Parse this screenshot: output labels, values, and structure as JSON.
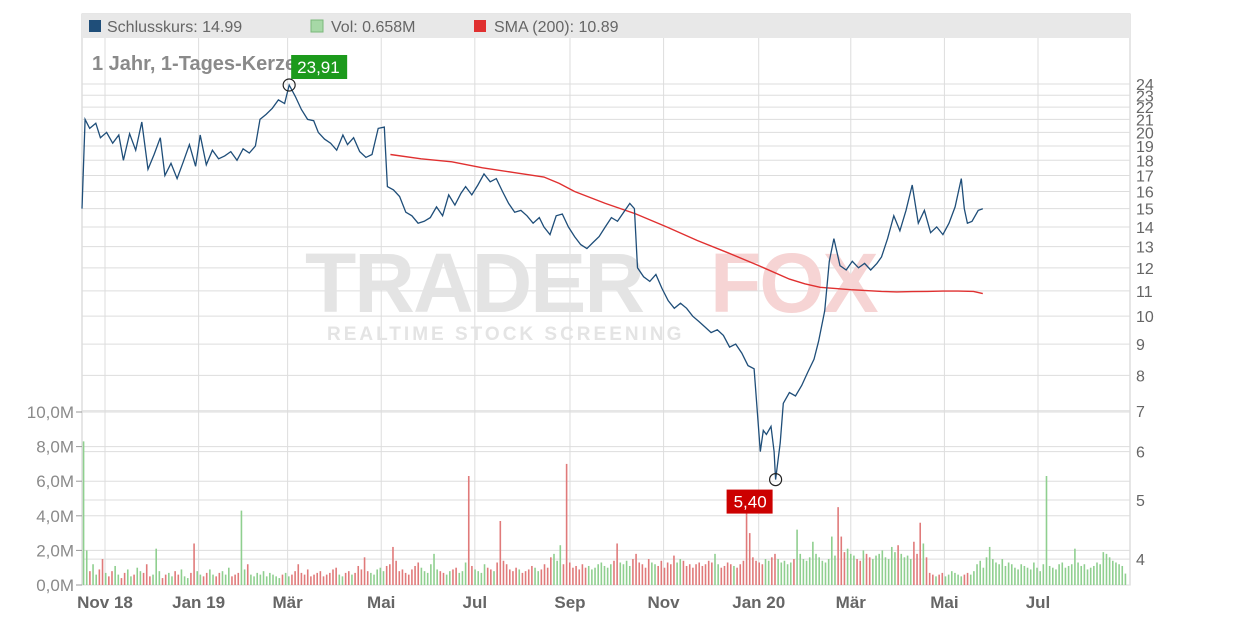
{
  "legend": {
    "close_label": "Schlusskurs: 14.99",
    "vol_label": "Vol: 0.658M",
    "sma_label": "SMA (200): 10.89"
  },
  "title": "1 Jahr, 1-Tages-Kerzen",
  "watermark": {
    "brand_a": "TRADER",
    "brand_b": "FOX",
    "tagline": "REALTIME STOCK SCREENING"
  },
  "annotations": {
    "high_label": "23,91",
    "low_label": "5,40"
  },
  "colors": {
    "close": "#1f4e79",
    "vol_up": "#8fcf8f",
    "vol_down": "#e07a7a",
    "sma": "#e03030",
    "high": "#1c9a1c",
    "low": "#cc0000"
  },
  "chart_data": {
    "type": "line",
    "price_scale": "log",
    "price_ylim": [
      3.5,
      25
    ],
    "price_ticks": [
      4,
      5,
      6,
      7,
      8,
      9,
      10,
      11,
      12,
      13,
      14,
      15,
      16,
      17,
      18,
      19,
      20,
      21,
      22,
      23,
      24
    ],
    "volume_ylim": [
      0,
      10000000
    ],
    "volume_ticks": [
      "0,0M",
      "2,0M",
      "4,0M",
      "6,0M",
      "8,0M",
      "10,0M"
    ],
    "x_ticks": [
      {
        "label": "Nov 18",
        "day": 15
      },
      {
        "label": "Jan 19",
        "day": 76
      },
      {
        "label": "Mär",
        "day": 134
      },
      {
        "label": "Mai",
        "day": 195
      },
      {
        "label": "Jul",
        "day": 256
      },
      {
        "label": "Sep",
        "day": 318
      },
      {
        "label": "Nov",
        "day": 379
      },
      {
        "label": "Jan 20",
        "day": 441
      },
      {
        "label": "Mär",
        "day": 501
      },
      {
        "label": "Mai",
        "day": 562
      },
      {
        "label": "Jul",
        "day": 623
      }
    ],
    "x_range_days": [
      0,
      681
    ],
    "series": [
      {
        "name": "Schlusskurs",
        "points": [
          [
            0,
            15.0
          ],
          [
            2,
            21.0
          ],
          [
            5,
            20.3
          ],
          [
            9,
            20.7
          ],
          [
            12,
            19.6
          ],
          [
            16,
            20.0
          ],
          [
            20,
            19.2
          ],
          [
            24,
            19.8
          ],
          [
            27,
            18.0
          ],
          [
            31,
            19.9
          ],
          [
            35,
            18.7
          ],
          [
            39,
            20.8
          ],
          [
            43,
            17.4
          ],
          [
            47,
            18.4
          ],
          [
            51,
            19.6
          ],
          [
            54,
            17.0
          ],
          [
            58,
            17.8
          ],
          [
            62,
            16.8
          ],
          [
            66,
            17.9
          ],
          [
            70,
            19.1
          ],
          [
            74,
            17.6
          ],
          [
            77,
            19.8
          ],
          [
            81,
            17.7
          ],
          [
            85,
            18.7
          ],
          [
            89,
            18.1
          ],
          [
            93,
            18.3
          ],
          [
            97,
            18.6
          ],
          [
            101,
            18.0
          ],
          [
            105,
            18.8
          ],
          [
            109,
            18.5
          ],
          [
            113,
            19.0
          ],
          [
            116,
            21.0
          ],
          [
            120,
            21.4
          ],
          [
            124,
            21.9
          ],
          [
            128,
            22.6
          ],
          [
            132,
            22.3
          ],
          [
            135,
            23.91
          ],
          [
            139,
            22.9
          ],
          [
            143,
            21.8
          ],
          [
            147,
            21.0
          ],
          [
            151,
            20.9
          ],
          [
            154,
            20.0
          ],
          [
            158,
            19.5
          ],
          [
            162,
            19.2
          ],
          [
            166,
            18.7
          ],
          [
            170,
            19.8
          ],
          [
            173,
            19.1
          ],
          [
            177,
            19.6
          ],
          [
            181,
            18.6
          ],
          [
            185,
            18.2
          ],
          [
            189,
            18.4
          ],
          [
            193,
            20.3
          ],
          [
            197,
            20.4
          ],
          [
            199,
            16.3
          ],
          [
            203,
            16.1
          ],
          [
            207,
            15.7
          ],
          [
            211,
            14.8
          ],
          [
            215,
            14.6
          ],
          [
            219,
            14.2
          ],
          [
            223,
            14.3
          ],
          [
            227,
            14.5
          ],
          [
            231,
            15.1
          ],
          [
            235,
            14.6
          ],
          [
            239,
            15.8
          ],
          [
            243,
            15.2
          ],
          [
            247,
            15.9
          ],
          [
            250,
            16.3
          ],
          [
            254,
            15.8
          ],
          [
            258,
            16.4
          ],
          [
            262,
            17.1
          ],
          [
            266,
            16.6
          ],
          [
            270,
            16.8
          ],
          [
            274,
            16.0
          ],
          [
            278,
            15.3
          ],
          [
            282,
            14.8
          ],
          [
            286,
            14.9
          ],
          [
            290,
            14.6
          ],
          [
            294,
            14.2
          ],
          [
            298,
            14.5
          ],
          [
            301,
            14.0
          ],
          [
            305,
            13.6
          ],
          [
            309,
            14.6
          ],
          [
            313,
            14.7
          ],
          [
            317,
            14.0
          ],
          [
            321,
            13.5
          ],
          [
            325,
            13.1
          ],
          [
            329,
            12.9
          ],
          [
            333,
            13.2
          ],
          [
            337,
            13.5
          ],
          [
            341,
            14.0
          ],
          [
            345,
            14.5
          ],
          [
            349,
            14.3
          ],
          [
            353,
            14.8
          ],
          [
            357,
            15.3
          ],
          [
            360,
            15.0
          ],
          [
            362,
            12.0
          ],
          [
            366,
            11.6
          ],
          [
            370,
            11.4
          ],
          [
            374,
            11.7
          ],
          [
            378,
            11.1
          ],
          [
            382,
            10.6
          ],
          [
            386,
            10.3
          ],
          [
            390,
            10.5
          ],
          [
            394,
            10.3
          ],
          [
            398,
            10.0
          ],
          [
            402,
            9.8
          ],
          [
            406,
            9.6
          ],
          [
            410,
            9.4
          ],
          [
            414,
            9.5
          ],
          [
            418,
            9.3
          ],
          [
            422,
            8.9
          ],
          [
            426,
            9.0
          ],
          [
            430,
            8.7
          ],
          [
            434,
            8.3
          ],
          [
            438,
            8.2
          ],
          [
            442,
            6.0
          ],
          [
            444,
            6.5
          ],
          [
            446,
            6.4
          ],
          [
            449,
            6.6
          ],
          [
            451,
            6.0
          ],
          [
            452,
            5.4
          ],
          [
            455,
            6.2
          ],
          [
            457,
            7.2
          ],
          [
            461,
            7.5
          ],
          [
            465,
            7.4
          ],
          [
            469,
            7.7
          ],
          [
            473,
            8.1
          ],
          [
            477,
            8.5
          ],
          [
            480,
            9.1
          ],
          [
            484,
            10.2
          ],
          [
            487,
            12.3
          ],
          [
            490,
            13.4
          ],
          [
            494,
            12.1
          ],
          [
            498,
            11.9
          ],
          [
            502,
            12.3
          ],
          [
            506,
            12.0
          ],
          [
            510,
            12.2
          ],
          [
            514,
            11.9
          ],
          [
            518,
            12.2
          ],
          [
            521,
            12.5
          ],
          [
            525,
            13.4
          ],
          [
            529,
            14.6
          ],
          [
            533,
            13.8
          ],
          [
            537,
            14.9
          ],
          [
            541,
            16.4
          ],
          [
            545,
            14.2
          ],
          [
            549,
            14.9
          ],
          [
            553,
            13.7
          ],
          [
            557,
            14.0
          ],
          [
            561,
            13.6
          ],
          [
            565,
            14.2
          ],
          [
            569,
            15.1
          ],
          [
            573,
            16.8
          ],
          [
            575,
            15.0
          ],
          [
            577,
            14.2
          ],
          [
            580,
            14.3
          ],
          [
            584,
            14.9
          ],
          [
            587,
            14.99
          ]
        ]
      },
      {
        "name": "SMA (200)",
        "points": [
          [
            201,
            18.4
          ],
          [
            221,
            18.1
          ],
          [
            241,
            17.9
          ],
          [
            261,
            17.5
          ],
          [
            281,
            17.2
          ],
          [
            301,
            16.9
          ],
          [
            311,
            16.5
          ],
          [
            321,
            16.0
          ],
          [
            341,
            15.3
          ],
          [
            361,
            14.7
          ],
          [
            381,
            14.0
          ],
          [
            401,
            13.3
          ],
          [
            421,
            12.7
          ],
          [
            441,
            12.1
          ],
          [
            461,
            11.5
          ],
          [
            471,
            11.3
          ],
          [
            481,
            11.15
          ],
          [
            501,
            11.05
          ],
          [
            521,
            10.98
          ],
          [
            531,
            10.96
          ],
          [
            541,
            10.97
          ],
          [
            551,
            10.98
          ],
          [
            561,
            10.99
          ],
          [
            571,
            10.99
          ],
          [
            581,
            10.98
          ],
          [
            587,
            10.89
          ]
        ]
      },
      {
        "name": "Vol",
        "values_m": [
          8.3,
          2.0,
          0.8,
          1.2,
          0.6,
          0.9,
          1.5,
          0.7,
          0.5,
          0.8,
          1.1,
          0.6,
          0.4,
          0.7,
          0.9,
          0.5,
          0.6,
          1.0,
          0.8,
          0.7,
          1.2,
          0.5,
          0.6,
          2.1,
          0.8,
          0.4,
          0.6,
          0.7,
          0.5,
          0.8,
          0.6,
          0.9,
          0.5,
          0.4,
          0.7,
          2.4,
          0.8,
          0.6,
          0.5,
          0.7,
          0.9,
          0.6,
          0.5,
          0.7,
          0.8,
          0.6,
          1.0,
          0.5,
          0.6,
          0.7,
          4.3,
          0.9,
          1.2,
          0.6,
          0.5,
          0.7,
          0.6,
          0.8,
          0.5,
          0.7,
          0.6,
          0.5,
          0.4,
          0.6,
          0.7,
          0.5,
          0.6,
          0.8,
          1.2,
          0.7,
          0.6,
          0.9,
          0.5,
          0.6,
          0.7,
          0.8,
          0.5,
          0.6,
          0.7,
          0.9,
          1.0,
          0.6,
          0.5,
          0.7,
          0.8,
          0.6,
          0.7,
          1.1,
          0.9,
          1.6,
          0.8,
          0.7,
          0.6,
          0.9,
          1.0,
          0.8,
          1.1,
          1.2,
          2.2,
          1.4,
          0.8,
          0.9,
          0.7,
          0.6,
          0.9,
          1.1,
          1.3,
          1.0,
          0.8,
          0.7,
          1.2,
          1.8,
          0.9,
          0.8,
          0.7,
          0.6,
          0.8,
          0.9,
          1.0,
          0.7,
          0.8,
          1.3,
          6.3,
          1.1,
          0.9,
          0.8,
          0.7,
          1.2,
          1.0,
          0.9,
          0.8,
          1.3,
          3.7,
          1.4,
          1.2,
          0.9,
          0.8,
          1.0,
          0.9,
          0.7,
          0.8,
          0.9,
          1.1,
          1.0,
          0.8,
          0.9,
          1.2,
          1.0,
          1.6,
          1.8,
          1.4,
          2.3,
          1.2,
          7.0,
          1.3,
          1.0,
          1.1,
          0.9,
          1.2,
          1.0,
          1.1,
          0.9,
          1.0,
          1.2,
          1.3,
          1.1,
          1.0,
          1.2,
          1.4,
          2.4,
          1.3,
          1.2,
          1.4,
          1.1,
          1.5,
          1.8,
          1.3,
          1.2,
          1.0,
          1.5,
          1.3,
          1.2,
          1.1,
          1.4,
          1.0,
          1.3,
          1.2,
          1.7,
          1.3,
          1.5,
          1.4,
          1.1,
          1.2,
          1.0,
          1.2,
          1.3,
          1.1,
          1.2,
          1.4,
          1.3,
          1.8,
          1.2,
          1.0,
          1.1,
          1.3,
          1.2,
          1.1,
          1.0,
          1.2,
          1.4,
          5.2,
          3.0,
          1.6,
          1.4,
          1.3,
          1.2,
          1.5,
          1.4,
          1.6,
          1.8,
          1.5,
          1.3,
          1.4,
          1.2,
          1.3,
          1.5,
          3.2,
          1.8,
          1.5,
          1.4,
          1.6,
          2.5,
          1.8,
          1.6,
          1.4,
          1.3,
          1.5,
          2.8,
          1.7,
          4.5,
          2.8,
          1.9,
          2.1,
          1.8,
          1.7,
          1.5,
          1.4,
          2.0,
          1.8,
          1.6,
          1.5,
          1.7,
          1.8,
          2.0,
          1.6,
          1.5,
          2.2,
          1.9,
          2.3,
          1.8,
          1.6,
          1.7,
          1.5,
          2.5,
          1.8,
          3.6,
          2.4,
          1.6,
          0.7,
          0.6,
          0.5,
          0.6,
          0.7,
          0.5,
          0.6,
          0.8,
          0.7,
          0.6,
          0.5,
          0.6,
          0.7,
          0.6,
          0.8,
          1.2,
          1.4,
          1.0,
          1.6,
          2.2,
          1.5,
          1.3,
          1.2,
          1.5,
          1.1,
          1.3,
          1.2,
          1.0,
          0.9,
          1.2,
          1.1,
          1.0,
          0.9,
          1.3,
          1.0,
          0.8,
          1.2,
          6.3,
          1.1,
          1.0,
          0.9,
          1.2,
          1.3,
          1.0,
          1.1,
          1.2,
          2.1,
          1.3,
          1.1,
          1.2,
          0.9,
          1.0,
          1.1,
          1.3,
          1.2,
          1.9,
          1.8,
          1.6,
          1.4,
          1.3,
          1.2,
          1.1,
          0.66
        ]
      }
    ],
    "high": {
      "value": 23.91,
      "day": 135
    },
    "low": {
      "value": 5.4,
      "day": 452
    }
  }
}
